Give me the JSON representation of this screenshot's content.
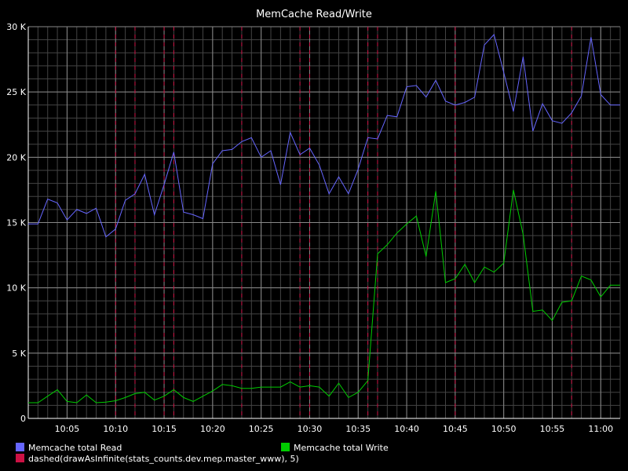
{
  "chart_data": {
    "type": "line",
    "title": "MemCache Read/Write",
    "background": "#000000",
    "grid": true,
    "major_grid_color": "#888888",
    "minor_grid_color": "#444444",
    "y_ticks": [
      {
        "value": 0,
        "label": "0"
      },
      {
        "value": 5000,
        "label": "5 K"
      },
      {
        "value": 10000,
        "label": "10 K"
      },
      {
        "value": 15000,
        "label": "15 K"
      },
      {
        "value": 20000,
        "label": "20 K"
      },
      {
        "value": 25000,
        "label": "25 K"
      },
      {
        "value": 30000,
        "label": "30 K"
      }
    ],
    "ylim": [
      0,
      30000
    ],
    "x_range": [
      "10:01",
      "11:02"
    ],
    "x_ticks": [
      "10:05",
      "10:10",
      "10:15",
      "10:20",
      "10:25",
      "10:30",
      "10:35",
      "10:40",
      "10:45",
      "10:50",
      "10:55",
      "11:00"
    ],
    "x": [
      "10:01",
      "10:02",
      "10:03",
      "10:04",
      "10:05",
      "10:06",
      "10:07",
      "10:08",
      "10:09",
      "10:10",
      "10:11",
      "10:12",
      "10:13",
      "10:14",
      "10:15",
      "10:16",
      "10:17",
      "10:18",
      "10:19",
      "10:20",
      "10:21",
      "10:22",
      "10:23",
      "10:24",
      "10:25",
      "10:26",
      "10:27",
      "10:28",
      "10:29",
      "10:30",
      "10:31",
      "10:32",
      "10:33",
      "10:34",
      "10:35",
      "10:36",
      "10:37",
      "10:38",
      "10:39",
      "10:40",
      "10:41",
      "10:42",
      "10:43",
      "10:44",
      "10:45",
      "10:46",
      "10:47",
      "10:48",
      "10:49",
      "10:50",
      "10:51",
      "10:52",
      "10:53",
      "10:54",
      "10:55",
      "10:56",
      "10:57",
      "10:58",
      "10:59",
      "11:00",
      "11:01",
      "11:02"
    ],
    "series": [
      {
        "name": "Memcache total Read",
        "color": "#6666ff",
        "values": [
          14900,
          14900,
          16800,
          16500,
          15200,
          16000,
          15700,
          16100,
          13900,
          14500,
          16700,
          17200,
          18700,
          15600,
          17900,
          20400,
          15800,
          15600,
          15300,
          19500,
          20500,
          20600,
          21200,
          21500,
          20000,
          20500,
          17900,
          21900,
          20200,
          20700,
          19400,
          17200,
          18500,
          17200,
          19100,
          21500,
          21400,
          23200,
          23100,
          25400,
          25500,
          24600,
          25900,
          24300,
          24000,
          24200,
          24600,
          28600,
          29400,
          26500,
          23500,
          27700,
          22000,
          24100,
          22800,
          22600,
          23400,
          24700,
          29200,
          24800,
          24000,
          24000
        ]
      },
      {
        "name": "Memcache total Write",
        "color": "#00cc00",
        "values": [
          1200,
          1200,
          1700,
          2200,
          1300,
          1200,
          1800,
          1200,
          1250,
          1350,
          1600,
          1900,
          2000,
          1400,
          1700,
          2200,
          1600,
          1300,
          1700,
          2100,
          2600,
          2500,
          2300,
          2300,
          2400,
          2400,
          2400,
          2800,
          2400,
          2500,
          2400,
          1700,
          2700,
          1600,
          2000,
          2900,
          12600,
          13300,
          14200,
          14900,
          15500,
          12400,
          17400,
          10400,
          10700,
          11800,
          10400,
          11600,
          11200,
          11900,
          17500,
          14100,
          8200,
          8300,
          7500,
          8900,
          9000,
          10900,
          10600,
          9300,
          10200,
          10200
        ]
      }
    ],
    "markers": {
      "name": "dashed(drawAsInfinite(stats_counts.dev.mep.master_www), 5)",
      "color": "#cc1144",
      "x": [
        "10:10",
        "10:12",
        "10:15",
        "10:16",
        "10:23",
        "10:29",
        "10:30",
        "10:36",
        "10:37",
        "10:45",
        "10:57"
      ]
    },
    "legend_placement": "bottom"
  }
}
